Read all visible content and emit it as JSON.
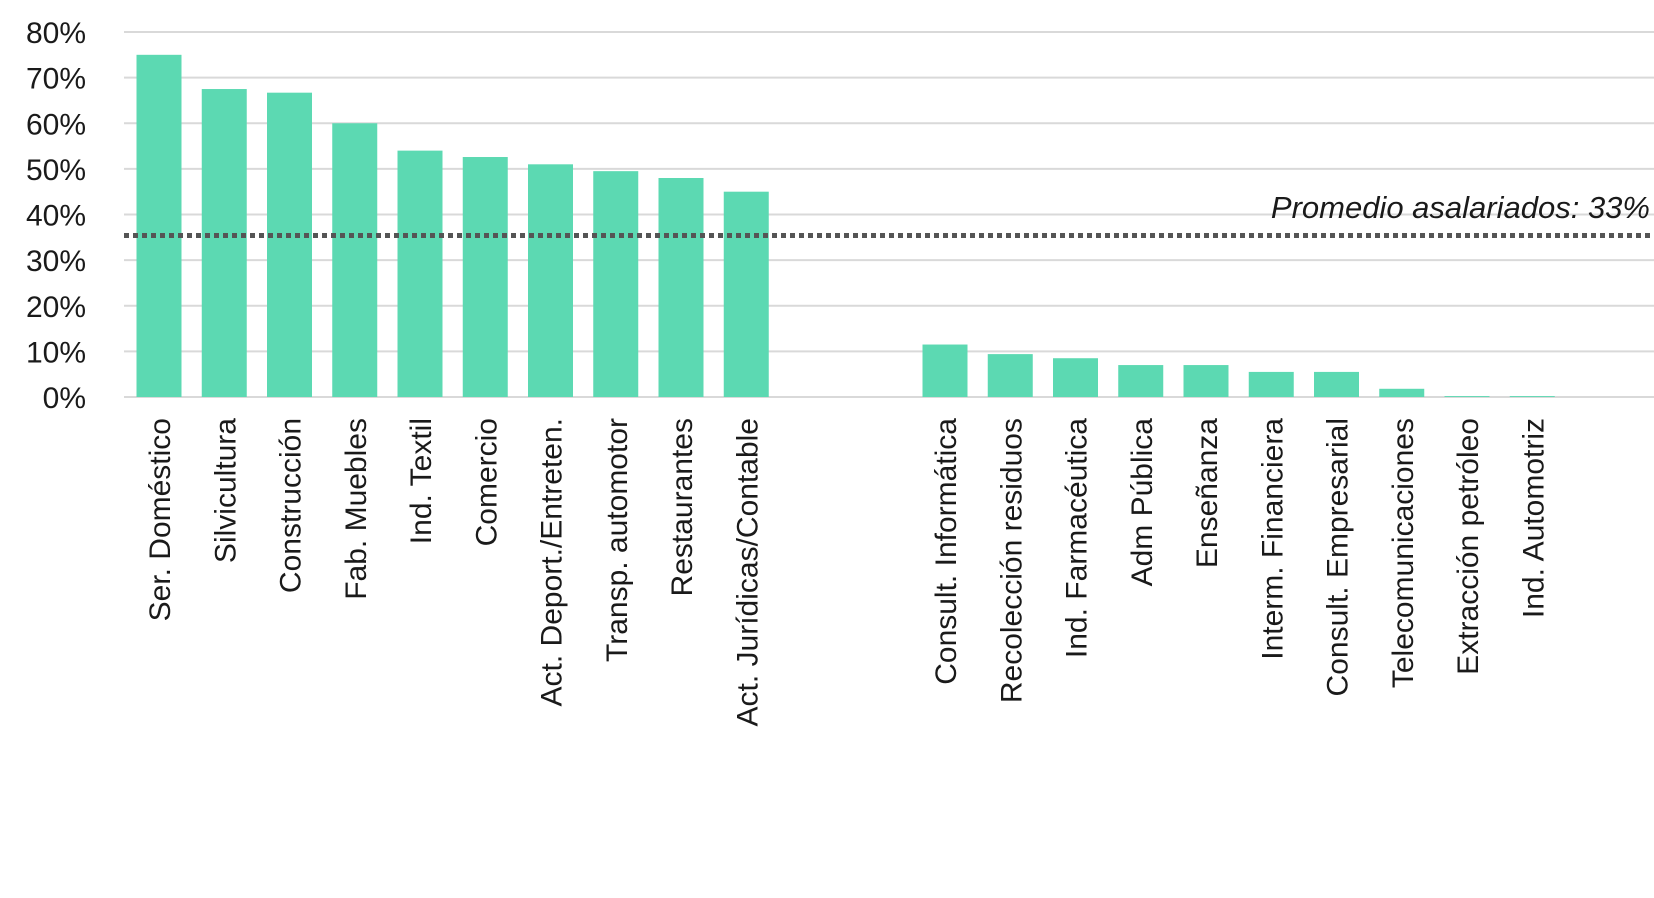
{
  "chart_data": {
    "type": "bar",
    "title": "",
    "xlabel": "",
    "ylabel": "",
    "ylim": [
      0,
      80
    ],
    "yticks": [
      "0%",
      "10%",
      "20%",
      "30%",
      "40%",
      "50%",
      "60%",
      "70%",
      "80%"
    ],
    "grid": true,
    "bar_color": "#5cd9b2",
    "groups": [
      {
        "categories": [
          "Ser. Doméstico",
          "Silvicultura",
          "Construcción",
          "Fab. Muebles",
          "Ind. Textil",
          "Comercio",
          "Act. Deport./Entreten.",
          "Transp. automotor",
          "Restaurantes",
          "Act. Jurídicas/Contable"
        ],
        "values": [
          75,
          67.5,
          66.7,
          60,
          54,
          52.6,
          51,
          49.5,
          48,
          45
        ]
      },
      {
        "categories": [
          "Consult. Informática",
          "Recolección residuos",
          "Ind. Farmacéutica",
          "Adm Pública",
          "Enseñanza",
          "Interm. Financiera",
          "Consult. Empresarial",
          "Telecomunicaciones",
          "Extracción petróleo",
          "Ind. Automotriz"
        ],
        "values": [
          11.5,
          9.4,
          8.5,
          7,
          7,
          5.5,
          5.5,
          1.8,
          0.2,
          0.2
        ]
      }
    ],
    "reference_line": {
      "value": 33,
      "label": "Promedio asalariados: 33%",
      "color": "#555555",
      "style": "dotted"
    },
    "gridline_color": "#d9d9d9",
    "text_color": "#1a1a1a"
  }
}
